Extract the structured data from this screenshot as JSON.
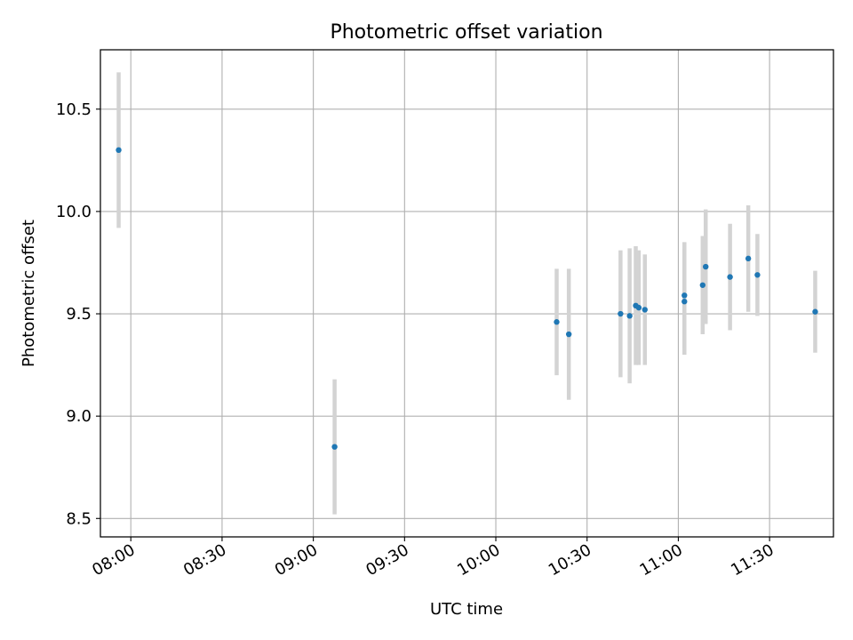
{
  "chart_data": {
    "type": "scatter",
    "title": "Photometric offset variation",
    "xlabel": "UTC time",
    "ylabel": "Photometric offset",
    "x_axis_type": "time",
    "xlim": [
      "07:50",
      "11:51"
    ],
    "ylim": [
      8.41,
      10.79
    ],
    "x_ticks": [
      "08:00",
      "08:30",
      "09:00",
      "09:30",
      "10:00",
      "10:30",
      "11:00",
      "11:30"
    ],
    "y_ticks": [
      8.5,
      9.0,
      9.5,
      10.0,
      10.5
    ],
    "y_tick_labels": [
      "8.5",
      "9.0",
      "9.5",
      "10.0",
      "10.5"
    ],
    "grid": true,
    "marker_color": "#1f77b4",
    "errorbar_color": "#d3d3d3",
    "points": [
      {
        "x": "07:56",
        "y": 10.3,
        "err": 0.38
      },
      {
        "x": "09:07",
        "y": 8.85,
        "err": 0.33
      },
      {
        "x": "10:20",
        "y": 9.46,
        "err": 0.26
      },
      {
        "x": "10:24",
        "y": 9.4,
        "err": 0.32
      },
      {
        "x": "10:41",
        "y": 9.5,
        "err": 0.31
      },
      {
        "x": "10:44",
        "y": 9.49,
        "err": 0.33
      },
      {
        "x": "10:46",
        "y": 9.54,
        "err": 0.29
      },
      {
        "x": "10:47",
        "y": 9.53,
        "err": 0.28
      },
      {
        "x": "10:49",
        "y": 9.52,
        "err": 0.27
      },
      {
        "x": "11:02",
        "y": 9.56,
        "err": 0.26
      },
      {
        "x": "11:02",
        "y": 9.59,
        "err": 0.26
      },
      {
        "x": "11:08",
        "y": 9.64,
        "err": 0.24
      },
      {
        "x": "11:09",
        "y": 9.73,
        "err": 0.28
      },
      {
        "x": "11:17",
        "y": 9.68,
        "err": 0.26
      },
      {
        "x": "11:23",
        "y": 9.77,
        "err": 0.26
      },
      {
        "x": "11:26",
        "y": 9.69,
        "err": 0.2
      },
      {
        "x": "11:45",
        "y": 9.51,
        "err": 0.2
      }
    ]
  }
}
